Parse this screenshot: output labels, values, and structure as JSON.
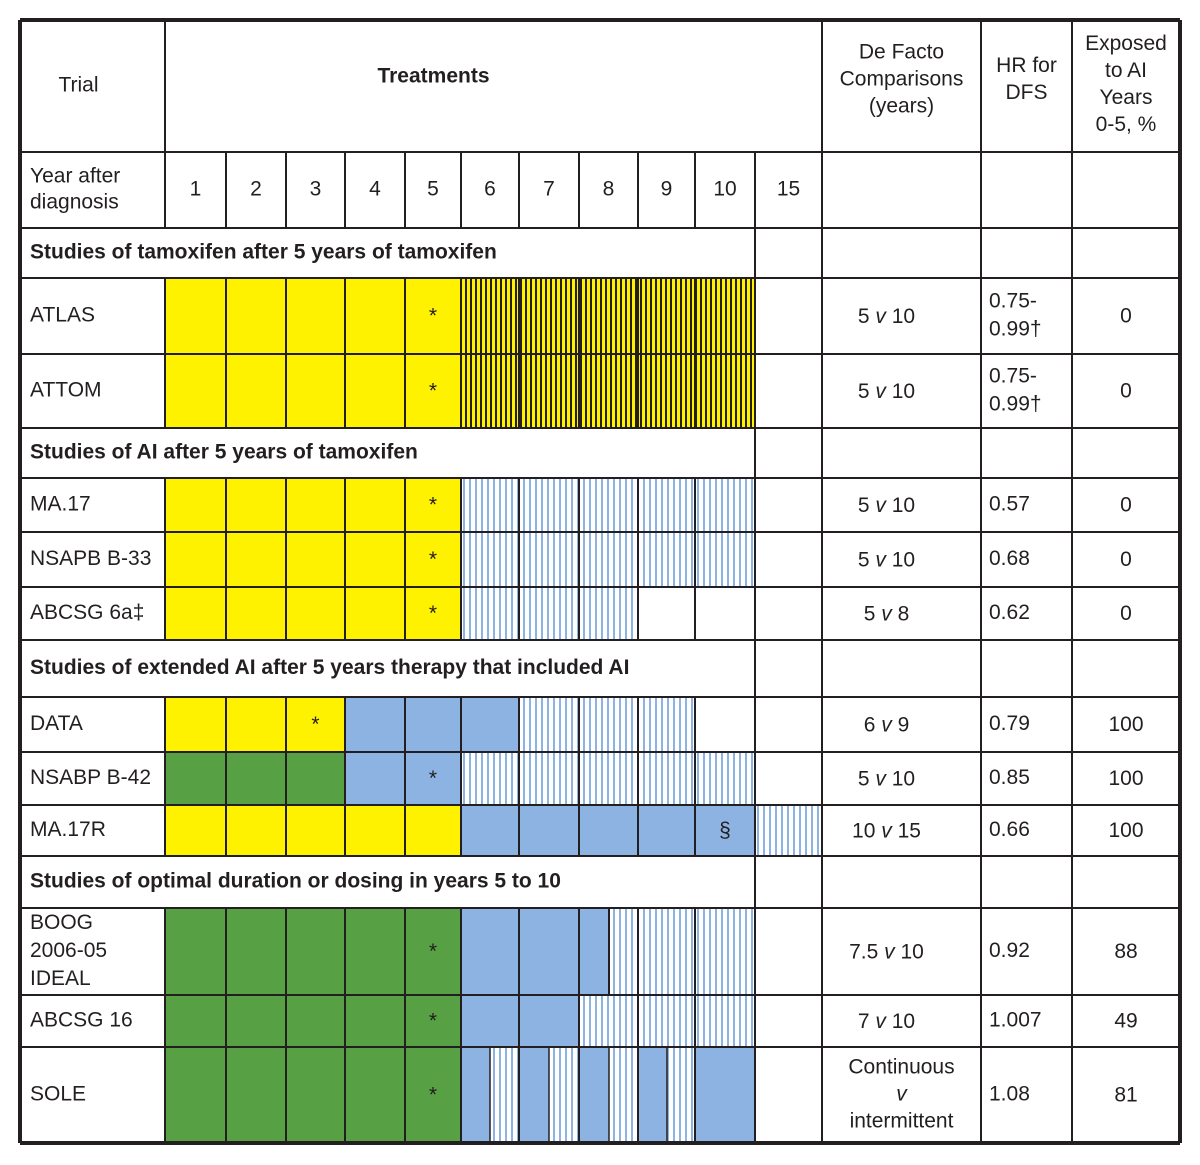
{
  "header": {
    "trial": "Trial",
    "treatments": "Treatments",
    "de_facto": [
      "De Facto",
      "Comparisons",
      "(years)"
    ],
    "hr": [
      "HR for",
      "DFS"
    ],
    "exposed": [
      "Exposed",
      "to AI",
      "Years",
      "0-5, %"
    ]
  },
  "year_row": {
    "label": [
      "Year after",
      "diagnosis"
    ],
    "years": [
      "1",
      "2",
      "3",
      "4",
      "5",
      "6",
      "7",
      "8",
      "9",
      "10",
      "15"
    ]
  },
  "colors": {
    "tamoxifen": "#fff200",
    "ai": "#8db3e2",
    "other": "#57a044",
    "placebo_hatch": "#8db3e2",
    "tamoxifen_hatch_line": "#231f20",
    "border": "#231f20"
  },
  "sections": [
    {
      "title": "Studies of tamoxifen after 5 years of tamoxifen",
      "rows": [
        {
          "trial": [
            "ATLAS"
          ],
          "comparison": {
            "a": "5",
            "v": "v",
            "b": "10"
          },
          "hr": [
            "0.75-",
            "0.99†"
          ],
          "exposed": "0",
          "cells": [
            "tam",
            "tam",
            "tam",
            "tam",
            "tam",
            "tamh",
            "tamh",
            "tamh",
            "tamh",
            "tamh",
            "none"
          ],
          "marker": {
            "year": 5,
            "symbol": "*"
          }
        },
        {
          "trial": [
            "ATTOM"
          ],
          "comparison": {
            "a": "5",
            "v": "v",
            "b": "10"
          },
          "hr": [
            "0.75-",
            "0.99†"
          ],
          "exposed": "0",
          "cells": [
            "tam",
            "tam",
            "tam",
            "tam",
            "tam",
            "tamh",
            "tamh",
            "tamh",
            "tamh",
            "tamh",
            "none"
          ],
          "marker": {
            "year": 5,
            "symbol": "*"
          }
        }
      ]
    },
    {
      "title": "Studies of AI after 5 years of tamoxifen",
      "rows": [
        {
          "trial": [
            "MA.17"
          ],
          "comparison": {
            "a": "5",
            "v": "v",
            "b": "10"
          },
          "hr": [
            "0.57"
          ],
          "exposed": "0",
          "cells": [
            "tam",
            "tam",
            "tam",
            "tam",
            "tam",
            "plc",
            "plc",
            "plc",
            "plc",
            "plc",
            "none"
          ],
          "marker": {
            "year": 5,
            "symbol": "*"
          }
        },
        {
          "trial": [
            "NSAPB B-33"
          ],
          "comparison": {
            "a": "5",
            "v": "v",
            "b": "10"
          },
          "hr": [
            "0.68"
          ],
          "exposed": "0",
          "cells": [
            "tam",
            "tam",
            "tam",
            "tam",
            "tam",
            "plc",
            "plc",
            "plc",
            "plc",
            "plc",
            "none"
          ],
          "marker": {
            "year": 5,
            "symbol": "*"
          }
        },
        {
          "trial": [
            "ABCSG 6a‡"
          ],
          "comparison": {
            "a": "5",
            "v": "v",
            "b": "8"
          },
          "hr": [
            "0.62"
          ],
          "exposed": "0",
          "cells": [
            "tam",
            "tam",
            "tam",
            "tam",
            "tam",
            "plc",
            "plc",
            "plc",
            "none",
            "none",
            "none"
          ],
          "marker": {
            "year": 5,
            "symbol": "*"
          }
        }
      ]
    },
    {
      "title": "Studies of extended AI after 5 years therapy that included AI",
      "rows": [
        {
          "trial": [
            "DATA"
          ],
          "comparison": {
            "a": "6",
            "v": "v",
            "b": "9"
          },
          "hr": [
            "0.79"
          ],
          "exposed": "100",
          "cells": [
            "tam",
            "tam",
            "tam",
            "ai",
            "ai",
            "ai",
            "plc",
            "plc",
            "plc",
            "none",
            "none"
          ],
          "marker": {
            "year": 3,
            "symbol": "*"
          }
        },
        {
          "trial": [
            "NSABP B-42"
          ],
          "comparison": {
            "a": "5",
            "v": "v",
            "b": "10"
          },
          "hr": [
            "0.85"
          ],
          "exposed": "100",
          "cells": [
            "oth",
            "oth",
            "oth",
            "ai",
            "ai",
            "plc",
            "plc",
            "plc",
            "plc",
            "plc",
            "none"
          ],
          "marker": {
            "year": 5,
            "symbol": "*"
          }
        },
        {
          "trial": [
            "MA.17R"
          ],
          "comparison": {
            "a": "10",
            "v": "v",
            "b": "15"
          },
          "hr": [
            "0.66"
          ],
          "exposed": "100",
          "cells": [
            "tam",
            "tam",
            "tam",
            "tam",
            "tam",
            "ai",
            "ai",
            "ai",
            "ai",
            "ai",
            "plc"
          ],
          "marker": {
            "year": 10,
            "symbol": "§"
          }
        }
      ]
    },
    {
      "title": "Studies of optimal duration or dosing in years 5 to 10",
      "rows": [
        {
          "trial": [
            "BOOG",
            "2006-05",
            "IDEAL"
          ],
          "comparison": {
            "a": "7.5",
            "v": "v",
            "b": "10"
          },
          "hr": [
            "0.92"
          ],
          "exposed": "88",
          "cells": [
            "oth",
            "oth",
            "oth",
            "oth",
            "oth",
            "ai",
            "ai",
            "split",
            "plc",
            "plc",
            "none"
          ],
          "marker": {
            "year": 5,
            "symbol": "*"
          }
        },
        {
          "trial": [
            "ABCSG 16"
          ],
          "comparison": {
            "a": "7",
            "v": "v",
            "b": "10"
          },
          "hr": [
            "1.007"
          ],
          "exposed": "49",
          "cells": [
            "oth",
            "oth",
            "oth",
            "oth",
            "oth",
            "ai",
            "ai",
            "plc",
            "plc",
            "plc",
            "none"
          ],
          "marker": {
            "year": 5,
            "symbol": "*"
          }
        },
        {
          "trial": [
            "SOLE"
          ],
          "comparison": {
            "lines": [
              "Continuous",
              "v",
              "intermittent"
            ]
          },
          "hr": [
            "1.08"
          ],
          "exposed": "81",
          "cells": [
            "oth",
            "oth",
            "oth",
            "oth",
            "oth",
            "int",
            "int",
            "int",
            "int",
            "ai",
            "none"
          ],
          "marker": {
            "year": 5,
            "symbol": "*"
          }
        }
      ]
    }
  ]
}
